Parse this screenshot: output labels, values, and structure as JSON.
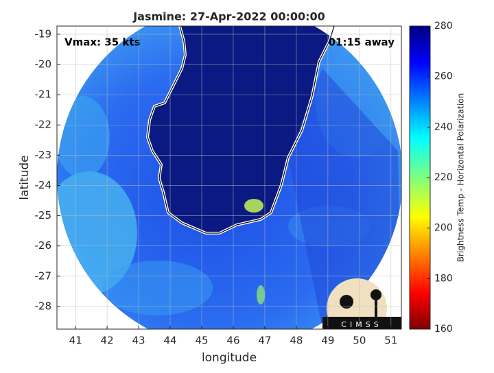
{
  "chart_data": {
    "type": "map",
    "title": "Jasmine: 27-Apr-2022 00:00:00",
    "xlabel": "longitude",
    "ylabel": "latitude",
    "annotations": [
      "Vmax: 35 kts",
      "01:15 away"
    ],
    "logo_text": "CIMSS",
    "xlim": [
      40.41,
      51.33
    ],
    "ylim": [
      -28.75,
      -18.73
    ],
    "xticks": [
      41,
      42,
      43,
      44,
      45,
      46,
      47,
      48,
      49,
      50,
      51
    ],
    "yticks": [
      -19,
      -20,
      -21,
      -22,
      -23,
      -24,
      -25,
      -26,
      -27,
      -28
    ],
    "grid": true,
    "colorbar": {
      "label": "Brightness Temp - Horizontal Polarization",
      "lim": [
        160,
        280
      ],
      "ticks": [
        160,
        180,
        200,
        220,
        240,
        260,
        280
      ]
    }
  }
}
